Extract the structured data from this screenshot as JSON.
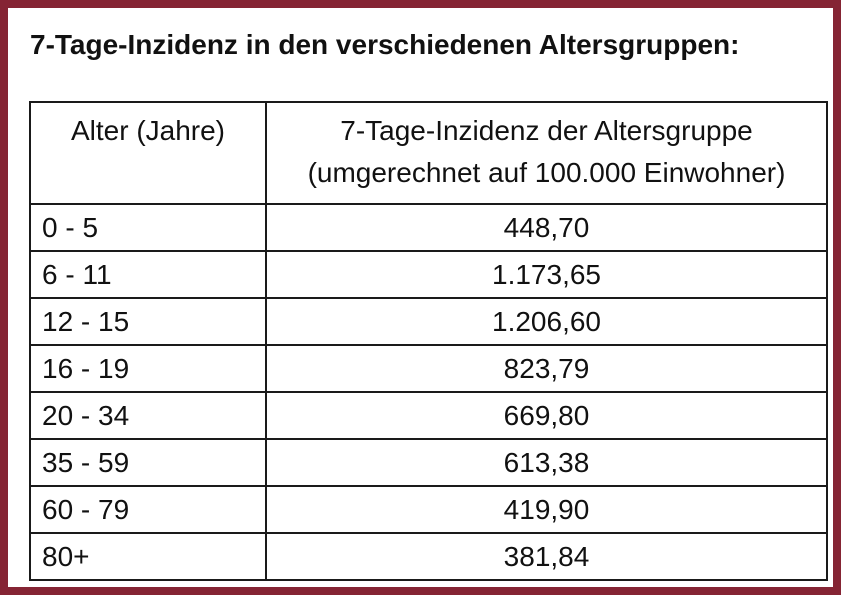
{
  "title": "7-Tage-Inzidenz in den verschiedenen Altersgruppen:",
  "colors": {
    "frame": "#852434",
    "table_border": "#1a1a1a",
    "text": "#111111",
    "background": "#ffffff"
  },
  "table": {
    "col1_header": "Alter (Jahre)",
    "col2_header_line1": "7-Tage-Inzidenz der Altersgruppe",
    "col2_header_line2": "(umgerechnet auf 100.000 Einwohner)",
    "rows": [
      {
        "age": "0 - 5",
        "value": "448,70"
      },
      {
        "age": "6 - 11",
        "value": "1.173,65"
      },
      {
        "age": "12 - 15",
        "value": "1.206,60"
      },
      {
        "age": "16 - 19",
        "value": "823,79"
      },
      {
        "age": "20 - 34",
        "value": "669,80"
      },
      {
        "age": "35 - 59",
        "value": "613,38"
      },
      {
        "age": "60 - 79",
        "value": "419,90"
      },
      {
        "age": "80+",
        "value": "381,84"
      }
    ]
  },
  "chart_data": {
    "type": "table",
    "title": "7-Tage-Inzidenz in den verschiedenen Altersgruppen:",
    "columns": [
      "Alter (Jahre)",
      "7-Tage-Inzidenz der Altersgruppe (umgerechnet auf 100.000 Einwohner)"
    ],
    "categories": [
      "0 - 5",
      "6 - 11",
      "12 - 15",
      "16 - 19",
      "20 - 34",
      "35 - 59",
      "60 - 79",
      "80+"
    ],
    "values": [
      448.7,
      1173.65,
      1206.6,
      823.79,
      669.8,
      613.38,
      419.9,
      381.84
    ]
  }
}
